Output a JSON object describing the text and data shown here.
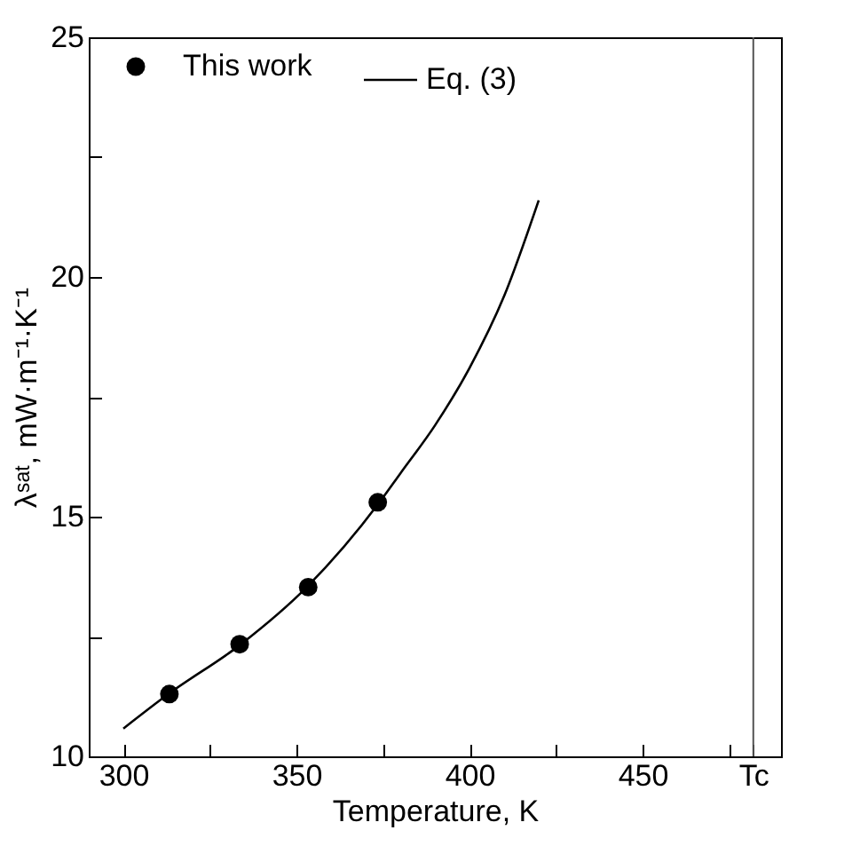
{
  "chart_data": {
    "type": "scatter",
    "xlabel": "Temperature, K",
    "ylabel": "λˢᵃᵗ, mW·m⁻¹·K⁻¹",
    "xlim": [
      290,
      490
    ],
    "ylim": [
      10,
      25
    ],
    "xticks": [
      {
        "value": 300,
        "label": "300"
      },
      {
        "value": 325,
        "label": null
      },
      {
        "value": 350,
        "label": "350"
      },
      {
        "value": 375,
        "label": null
      },
      {
        "value": 400,
        "label": "400"
      },
      {
        "value": 425,
        "label": null
      },
      {
        "value": 450,
        "label": "450"
      },
      {
        "value": 475,
        "label": null
      },
      {
        "value": 482,
        "label": "Tc"
      }
    ],
    "yticks": [
      10,
      {
        "value": 12.5,
        "label": null
      },
      15,
      {
        "value": 17.5,
        "label": null
      },
      20,
      {
        "value": 22.5,
        "label": null
      },
      25
    ],
    "series": [
      {
        "name": "This work",
        "color": "#000000",
        "marker": "circle",
        "x": [
          313.3,
          333.6,
          353.4,
          373.5
        ],
        "values": [
          11.3,
          12.34,
          13.53,
          15.3
        ]
      },
      {
        "name": "Eq. (3)",
        "type": "line",
        "color": "#000000",
        "line_style": "solid",
        "x": [
          300,
          313,
          334,
          353,
          374,
          380,
          390,
          400,
          410,
          420
        ],
        "values": [
          10.58,
          11.3,
          12.34,
          13.53,
          15.3,
          15.9,
          16.9,
          18.1,
          19.6,
          21.6
        ]
      }
    ],
    "ref_lines": [
      {
        "axis": "x",
        "value": 482,
        "label": null,
        "color": "#555555"
      }
    ],
    "legend": "top left"
  }
}
